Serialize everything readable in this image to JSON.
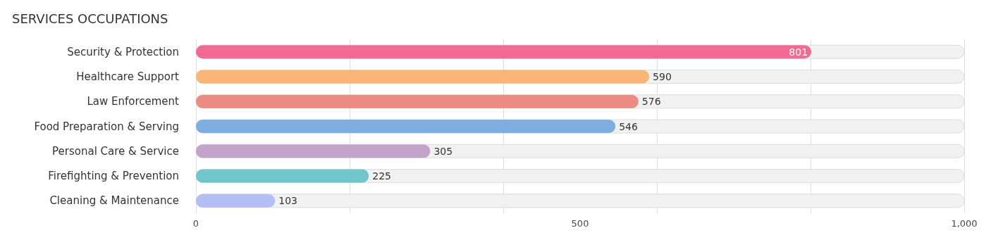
{
  "chart_data": {
    "type": "bar",
    "title": "SERVICES OCCUPATIONS",
    "orientation": "horizontal",
    "categories": [
      "Security & Protection",
      "Healthcare Support",
      "Law Enforcement",
      "Food Preparation & Serving",
      "Personal Care & Service",
      "Firefighting & Prevention",
      "Cleaning & Maintenance"
    ],
    "values": [
      801,
      590,
      576,
      546,
      305,
      225,
      103
    ],
    "colors": [
      "#f06b94",
      "#f9b574",
      "#ec8b84",
      "#7caee1",
      "#c4a2cb",
      "#71c6cb",
      "#b4bef0"
    ],
    "xlim": [
      0,
      1000
    ],
    "xticks": [
      0,
      500,
      {
        "value": 1000,
        "label": "1,000"
      }
    ],
    "grid": "x",
    "data_labels": true
  }
}
